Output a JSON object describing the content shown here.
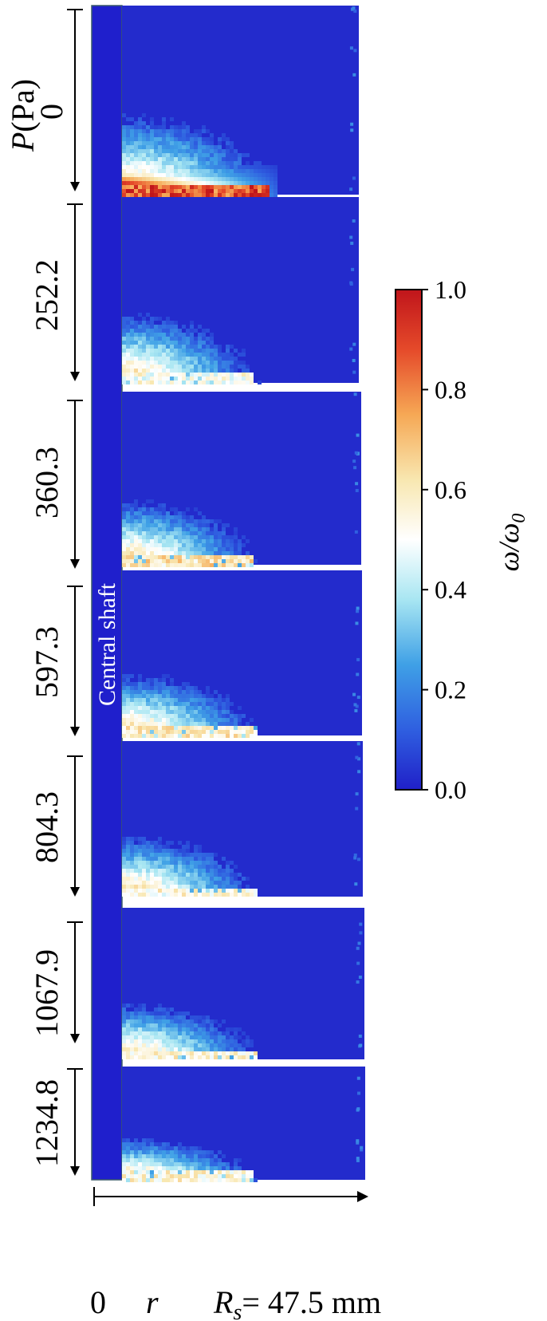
{
  "chart_data": {
    "type": "heatmap",
    "y_group_label": "P(Pa)",
    "shaft_label": "Central shaft",
    "x_axis": {
      "start_label": "0",
      "var_label": "r",
      "end_label": "R_s = 47.5 mm",
      "end_symbol": "R",
      "end_subscript": "s",
      "end_value": "= 47.5 mm"
    },
    "colorbar": {
      "label": "ω/ω0",
      "label_main": "ω/ω",
      "label_sub": "0",
      "range": [
        0.0,
        1.0
      ],
      "ticks": [
        "0.0",
        "0.2",
        "0.4",
        "0.6",
        "0.8",
        "1.0"
      ],
      "colormap": "RdYlBu_r"
    },
    "panels": [
      {
        "pressure": "0",
        "front_extent": 0.62,
        "front_height": 0.45,
        "band_intensity": 0.97
      },
      {
        "pressure": "252.2",
        "front_extent": 0.55,
        "front_height": 0.4,
        "band_intensity": 0.55
      },
      {
        "pressure": "360.3",
        "front_extent": 0.54,
        "front_height": 0.4,
        "band_intensity": 0.7
      },
      {
        "pressure": "597.3",
        "front_extent": 0.55,
        "front_height": 0.4,
        "band_intensity": 0.65
      },
      {
        "pressure": "804.3",
        "front_extent": 0.55,
        "front_height": 0.42,
        "band_intensity": 0.62
      },
      {
        "pressure": "1067.9",
        "front_extent": 0.55,
        "front_height": 0.4,
        "band_intensity": 0.62
      },
      {
        "pressure": "1234.8",
        "front_extent": 0.54,
        "front_height": 0.4,
        "band_intensity": 0.62
      }
    ]
  }
}
